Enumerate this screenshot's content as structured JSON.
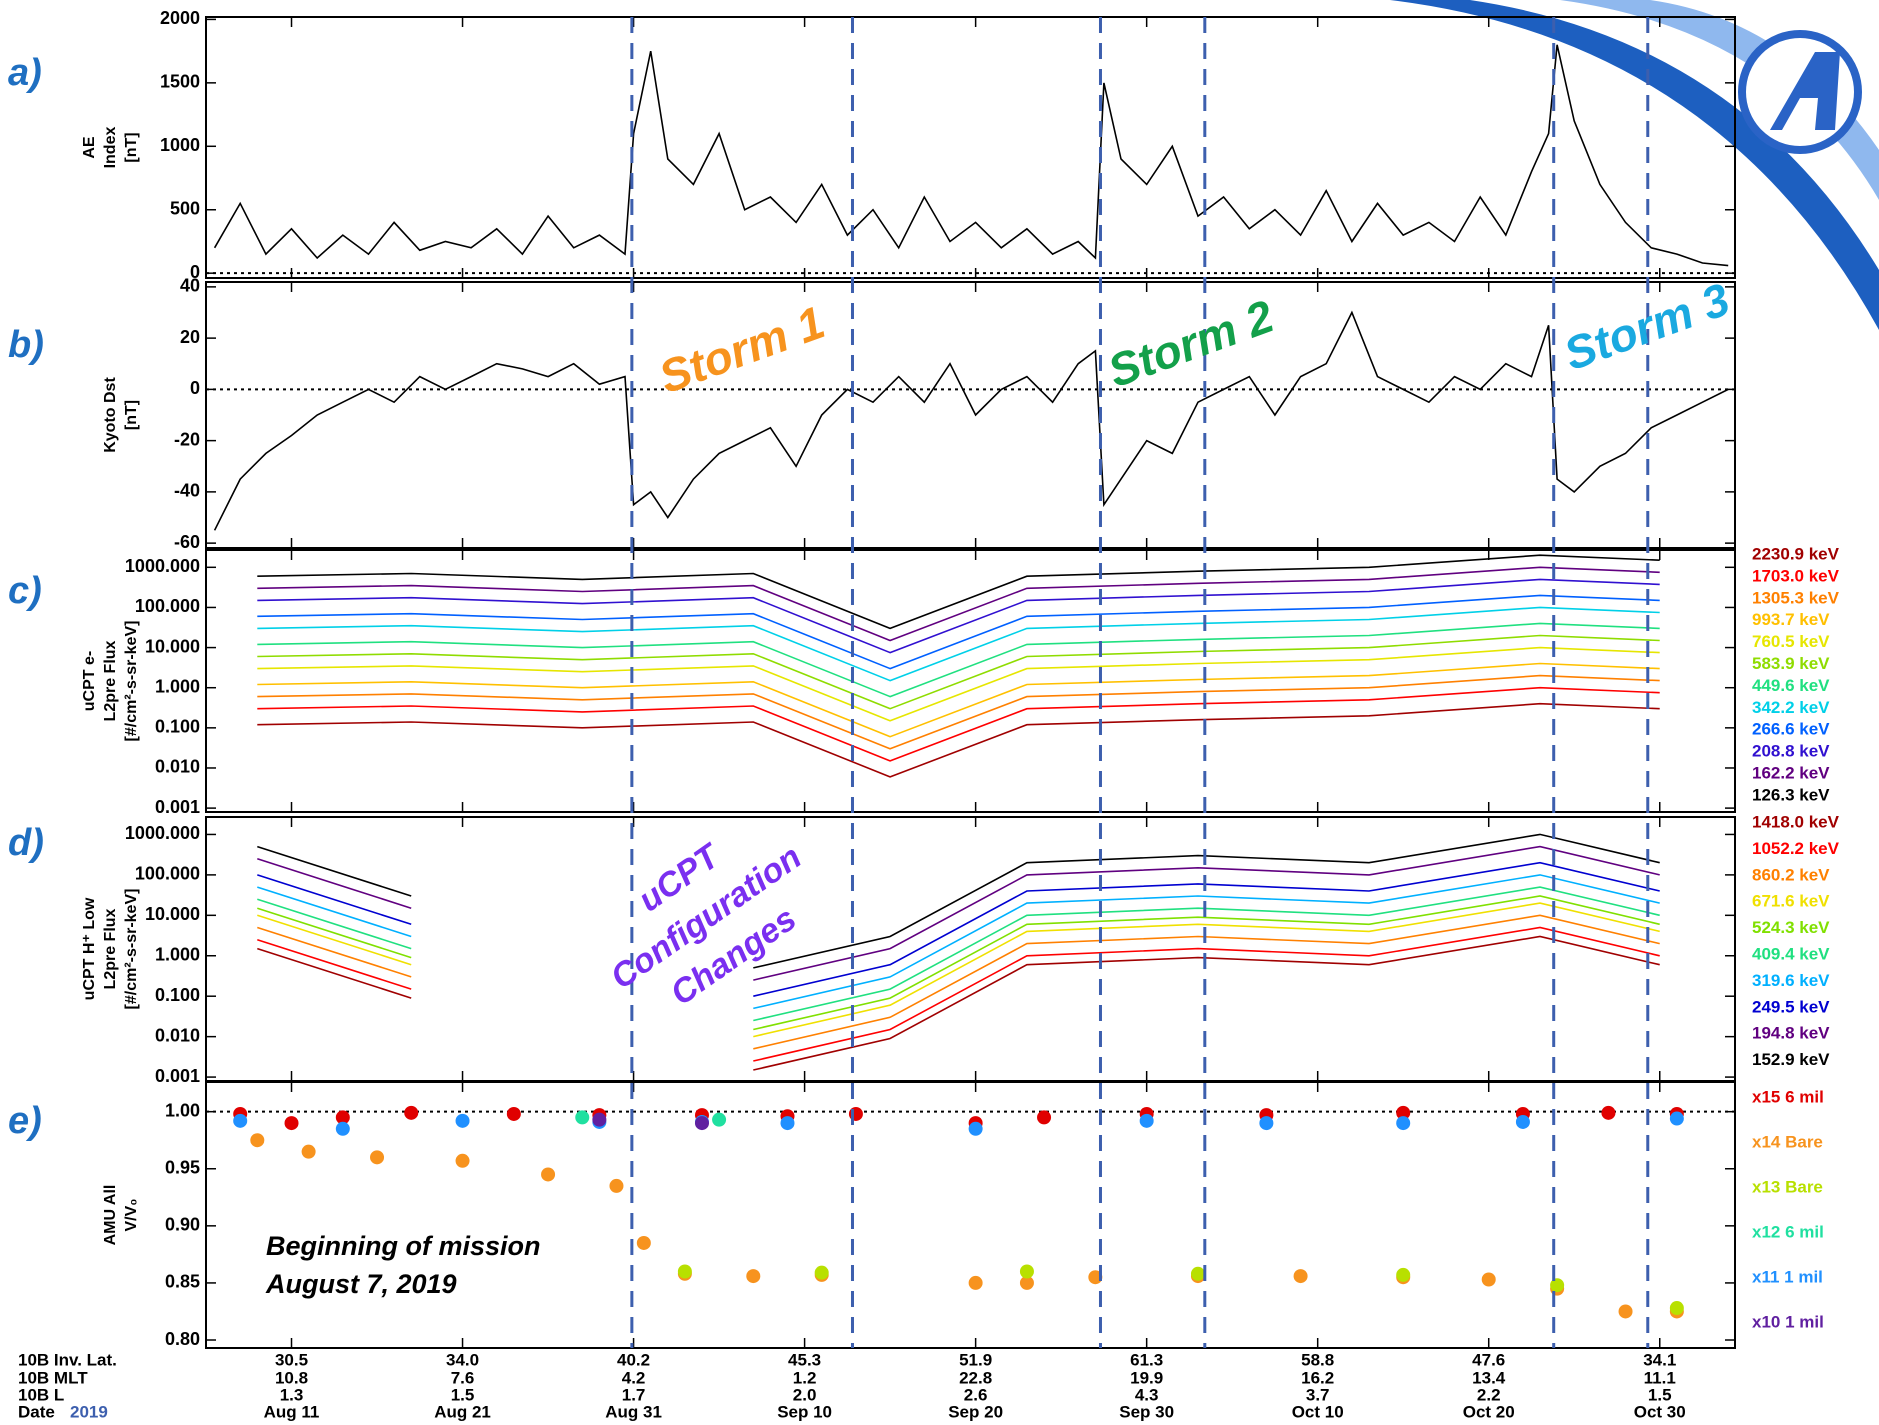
{
  "shared_x": {
    "xlim": [
      218,
      307.4
    ],
    "xticks": [
      {
        "value": 223,
        "label": "Aug 11"
      },
      {
        "value": 233,
        "label": "Aug 21"
      },
      {
        "value": 243,
        "label": "Aug 31"
      },
      {
        "value": 253,
        "label": "Sep 10"
      },
      {
        "value": 263,
        "label": "Sep 20"
      },
      {
        "value": 273,
        "label": "Sep 30"
      },
      {
        "value": 283,
        "label": "Oct 10"
      },
      {
        "value": 293,
        "label": "Oct 20"
      },
      {
        "value": 303,
        "label": "Oct 30"
      }
    ],
    "rows": [
      {
        "label": "10B Inv. Lat.",
        "values": [
          30.5,
          {
            "value": 34,
            "label": "34.0"
          },
          40.2,
          45.3,
          51.9,
          61.3,
          58.8,
          47.6,
          34.1
        ]
      },
      {
        "label": "10B MLT",
        "values": [
          10.8,
          7.6,
          4.2,
          1.2,
          22.8,
          19.9,
          16.2,
          13.4,
          11.1
        ]
      },
      {
        "label": "10B L",
        "values": [
          1.3,
          1.5,
          1.7,
          {
            "value": 2,
            "label": "2.0"
          },
          2.6,
          4.3,
          3.7,
          2.2,
          1.5
        ]
      }
    ],
    "date_label": "Date",
    "year": "2019",
    "storm_lines": [
      242.9,
      255.8,
      270.3,
      276.4,
      296.8,
      302.3
    ]
  },
  "annotations": [
    {
      "lines": [
        "Storm 1"
      ],
      "color": "#f7931e"
    },
    {
      "lines": [
        "Storm 2"
      ],
      "color": "#13a04a"
    },
    {
      "lines": [
        "Storm 3"
      ],
      "color": "#1aa9e0"
    },
    {
      "lines": [
        "uCPT",
        "Configuration",
        "Changes"
      ],
      "color": "#7a2ff0"
    },
    {
      "lines": [
        "Beginning of mission",
        "August 7, 2019"
      ],
      "color": "#000000"
    }
  ],
  "chart_data": [
    {
      "type": "line",
      "label": "a)",
      "ylabel": [
        "AE",
        "Index",
        "[nT]"
      ],
      "ylim": [
        -38,
        2019
      ],
      "yticks": [
        0,
        500,
        1000,
        1500,
        2000
      ],
      "hline": 0,
      "color": "#000000",
      "x": [
        218.5,
        220,
        221.5,
        223,
        224.5,
        226,
        227.5,
        229,
        230.5,
        232,
        233.5,
        235,
        236.5,
        238,
        239.5,
        241,
        242.5,
        243,
        244,
        245,
        246.5,
        248,
        249.5,
        251,
        252.5,
        254,
        255.5,
        257,
        258.5,
        260,
        261.5,
        263,
        264.5,
        266,
        267.5,
        269,
        270,
        270.5,
        271.5,
        273,
        274.5,
        276,
        277.5,
        279,
        280.5,
        282,
        283.5,
        285,
        286.5,
        288,
        289.5,
        291,
        292.5,
        294,
        295.5,
        296.5,
        297,
        298,
        299.5,
        301,
        302.5,
        304,
        305.5,
        307
      ],
      "values": [
        200,
        550,
        150,
        350,
        120,
        300,
        150,
        400,
        180,
        250,
        200,
        350,
        150,
        450,
        200,
        300,
        150,
        1100,
        1750,
        900,
        700,
        1100,
        500,
        600,
        400,
        700,
        300,
        500,
        200,
        600,
        250,
        400,
        200,
        350,
        150,
        250,
        120,
        1500,
        900,
        700,
        1000,
        450,
        600,
        350,
        500,
        300,
        650,
        250,
        550,
        300,
        400,
        250,
        600,
        300,
        800,
        1100,
        1800,
        1200,
        700,
        400,
        200,
        150,
        80,
        60
      ]
    },
    {
      "type": "line",
      "label": "b)",
      "ylabel": [
        "Kyoto Dst",
        "[nT]"
      ],
      "ylim": [
        -61.9,
        41.9
      ],
      "yticks": [
        -60,
        -40,
        -20,
        0,
        20,
        40
      ],
      "hline": 0,
      "color": "#000000",
      "x": [
        218.5,
        220,
        221.5,
        223,
        224.5,
        226,
        227.5,
        229,
        230.5,
        232,
        233.5,
        235,
        236.5,
        238,
        239.5,
        241,
        242.5,
        243,
        244,
        245,
        246.5,
        248,
        249.5,
        251,
        252.5,
        254,
        255.5,
        257,
        258.5,
        260,
        261.5,
        263,
        264.5,
        266,
        267.5,
        269,
        270,
        270.5,
        271.5,
        273,
        274.5,
        276,
        277.5,
        279,
        280.5,
        282,
        283.5,
        285,
        286.5,
        288,
        289.5,
        291,
        292.5,
        294,
        295.5,
        296.5,
        297,
        298,
        299.5,
        301,
        302.5,
        304,
        305.5,
        307
      ],
      "values": [
        -55,
        -35,
        -25,
        -18,
        -10,
        -5,
        0,
        -5,
        5,
        0,
        5,
        10,
        8,
        5,
        10,
        2,
        5,
        -45,
        -40,
        -50,
        -35,
        -25,
        -20,
        -15,
        -30,
        -10,
        0,
        -5,
        5,
        -5,
        10,
        -10,
        0,
        5,
        -5,
        10,
        15,
        -45,
        -35,
        -20,
        -25,
        -5,
        0,
        5,
        -10,
        5,
        10,
        30,
        5,
        0,
        -5,
        5,
        0,
        10,
        5,
        25,
        -35,
        -40,
        -30,
        -25,
        -15,
        -10,
        -5,
        0
      ]
    },
    {
      "type": "line",
      "label": "c)",
      "ylabel": [
        "uCPT e-",
        "L2pre Flux",
        "[#/cm²-s-sr-keV]"
      ],
      "log": true,
      "ylim": [
        0.0008,
        2700
      ],
      "yticks": [
        {
          "value": 1000,
          "label": "1000.000"
        },
        {
          "value": 100,
          "label": "100.000"
        },
        {
          "value": 10,
          "label": "10.000"
        },
        {
          "value": 1,
          "label": "1.000"
        },
        {
          "value": 0.1,
          "label": "0.100"
        },
        {
          "value": 0.01,
          "label": "0.010"
        },
        {
          "value": 0.001,
          "label": "0.001"
        }
      ],
      "x": [
        221,
        230,
        240,
        250,
        258,
        266,
        276,
        286,
        296,
        303
      ],
      "series": [
        {
          "name": "2230.9 keV",
          "color": "#a00000",
          "values": [
            0.12,
            0.14,
            0.1,
            0.14,
            0.006,
            0.12,
            0.16,
            0.2,
            0.4,
            0.3
          ]
        },
        {
          "name": "1703.0 keV",
          "color": "#ff0000",
          "values": [
            0.3,
            0.35,
            0.25,
            0.35,
            0.015,
            0.3,
            0.4,
            0.5,
            1,
            0.75
          ]
        },
        {
          "name": "1305.3 keV",
          "color": "#ff8000",
          "values": [
            0.6,
            0.7,
            0.5,
            0.7,
            0.03,
            0.6,
            0.8,
            1,
            2,
            1.5
          ]
        },
        {
          "name": "993.7 keV",
          "color": "#ffc000",
          "values": [
            1.2,
            1.4,
            1,
            1.4,
            0.06,
            1.2,
            1.6,
            2,
            4,
            3
          ]
        },
        {
          "name": "760.5 keV",
          "color": "#e6e600",
          "values": [
            3,
            3.5,
            2.5,
            3.5,
            0.15,
            3,
            4,
            5,
            10,
            7.5
          ]
        },
        {
          "name": "583.9 keV",
          "color": "#8fdc00",
          "values": [
            6,
            7,
            5,
            7,
            0.3,
            6,
            8,
            10,
            20,
            15
          ]
        },
        {
          "name": "449.6 keV",
          "color": "#20e080",
          "values": [
            12,
            14,
            10,
            14,
            0.6,
            12,
            16,
            20,
            40,
            30
          ]
        },
        {
          "name": "342.2 keV",
          "color": "#00d0e8",
          "values": [
            30,
            35,
            25,
            35,
            1.5,
            30,
            40,
            50,
            100,
            75
          ]
        },
        {
          "name": "266.6 keV",
          "color": "#0060ff",
          "values": [
            60,
            70,
            50,
            70,
            3,
            60,
            80,
            100,
            200,
            150
          ]
        },
        {
          "name": "208.8 keV",
          "color": "#3010d0",
          "values": [
            150,
            175,
            125,
            175,
            7.5,
            150,
            200,
            250,
            500,
            375
          ]
        },
        {
          "name": "162.2 keV",
          "color": "#600080",
          "values": [
            300,
            350,
            250,
            350,
            15,
            300,
            400,
            500,
            1000,
            750
          ]
        },
        {
          "name": "126.3 keV",
          "color": "#000000",
          "values": [
            600,
            700,
            500,
            700,
            30,
            600,
            800,
            1000,
            2000,
            1500
          ]
        }
      ]
    },
    {
      "type": "line",
      "label": "d)",
      "ylabel": [
        "uCPT H⁺ Low",
        "L2pre Flux",
        "[#/cm²-s-sr-keV]"
      ],
      "log": true,
      "ylim": [
        0.0008,
        2700
      ],
      "yticks": [
        {
          "value": 1000,
          "label": "1000.000"
        },
        {
          "value": 100,
          "label": "100.000"
        },
        {
          "value": 10,
          "label": "10.000"
        },
        {
          "value": 1,
          "label": "1.000"
        },
        {
          "value": 0.1,
          "label": "0.100"
        },
        {
          "value": 0.01,
          "label": "0.010"
        },
        {
          "value": 0.001,
          "label": "0.001"
        }
      ],
      "x": [
        221,
        230,
        240,
        250,
        258,
        266,
        276,
        286,
        296,
        303
      ],
      "series": [
        {
          "name": "1418.0 keV",
          "color": "#a00000",
          "values": [
            1.5,
            0.09,
            null,
            0.0015,
            0.009,
            0.6,
            0.9,
            0.6,
            3,
            0.6
          ]
        },
        {
          "name": "1052.2 keV",
          "color": "#ff0000",
          "values": [
            2.5,
            0.15,
            null,
            0.0025,
            0.015,
            1,
            1.5,
            1,
            5,
            1
          ]
        },
        {
          "name": "860.2 keV",
          "color": "#ff8000",
          "values": [
            5,
            0.3,
            null,
            0.005,
            0.03,
            2,
            3,
            2,
            10,
            2
          ]
        },
        {
          "name": "671.6 keV",
          "color": "#f0e000",
          "values": [
            10,
            0.6,
            null,
            0.01,
            0.06,
            4,
            6,
            4,
            20,
            4
          ]
        },
        {
          "name": "524.3 keV",
          "color": "#80e000",
          "values": [
            15,
            0.9,
            null,
            0.015,
            0.09,
            6,
            9,
            6,
            30,
            6
          ]
        },
        {
          "name": "409.4 keV",
          "color": "#20e080",
          "values": [
            25,
            1.5,
            null,
            0.025,
            0.15,
            10,
            15,
            10,
            50,
            10
          ]
        },
        {
          "name": "319.6 keV",
          "color": "#00b0ff",
          "values": [
            50,
            3,
            null,
            0.05,
            0.3,
            20,
            30,
            20,
            100,
            20
          ]
        },
        {
          "name": "249.5 keV",
          "color": "#0000d0",
          "values": [
            100,
            6,
            null,
            0.1,
            0.6,
            40,
            60,
            40,
            200,
            40
          ]
        },
        {
          "name": "194.8 keV",
          "color": "#600080",
          "values": [
            250,
            15,
            null,
            0.25,
            1.5,
            100,
            150,
            100,
            500,
            100
          ]
        },
        {
          "name": "152.9 keV",
          "color": "#000000",
          "values": [
            500,
            30,
            null,
            0.5,
            3,
            200,
            300,
            200,
            1000,
            200
          ]
        }
      ]
    },
    {
      "type": "scatter",
      "label": "e)",
      "ylabel": [
        "AMU All",
        "V/V₀"
      ],
      "ylim": [
        0.793,
        1.026
      ],
      "yticks": [
        {
          "value": 0.8,
          "label": "0.80"
        },
        0.85,
        {
          "value": 0.9,
          "label": "0.90"
        },
        0.95,
        {
          "value": 1,
          "label": "1.00"
        }
      ],
      "hline": 1,
      "series": [
        {
          "name": "x15 6 mil",
          "color": "#e00000",
          "x": [
            220,
            223,
            226,
            230,
            236,
            241,
            247,
            252,
            256,
            263,
            267,
            273,
            280,
            288,
            295,
            300,
            304
          ],
          "values": [
            0.998,
            0.99,
            0.995,
            0.999,
            0.998,
            0.997,
            0.997,
            0.996,
            0.998,
            0.99,
            0.995,
            0.998,
            0.997,
            0.999,
            0.998,
            0.999,
            0.998
          ]
        },
        {
          "name": "x14 Bare",
          "color": "#f7931e",
          "x": [
            221,
            224,
            228,
            233,
            238,
            242,
            243.6,
            246,
            250,
            254,
            263,
            266,
            270,
            276,
            282,
            288,
            293,
            297,
            301,
            304
          ],
          "values": [
            0.975,
            0.965,
            0.96,
            0.957,
            0.945,
            0.935,
            0.885,
            0.858,
            0.856,
            0.857,
            0.85,
            0.85,
            0.855,
            0.856,
            0.856,
            0.855,
            0.853,
            0.845,
            0.825,
            0.825
          ]
        },
        {
          "name": "x13 Bare",
          "color": "#b8e000",
          "x": [
            246,
            254,
            266,
            276,
            288,
            297,
            304
          ],
          "values": [
            0.86,
            0.859,
            0.86,
            0.858,
            0.857,
            0.848,
            0.828
          ]
        },
        {
          "name": "x12 6 mil",
          "color": "#20e0a0",
          "x": [
            240,
            248
          ],
          "values": [
            0.995,
            0.993
          ]
        },
        {
          "name": "x11 1 mil",
          "color": "#2090ff",
          "x": [
            220,
            226,
            233,
            241,
            247,
            252,
            263,
            273,
            280,
            288,
            295,
            304
          ],
          "values": [
            0.992,
            0.985,
            0.992,
            0.991,
            0.991,
            0.99,
            0.985,
            0.992,
            0.99,
            0.99,
            0.991,
            0.994
          ]
        },
        {
          "name": "x10 1 mil",
          "color": "#6020a0",
          "x": [
            241,
            247
          ],
          "values": [
            0.993,
            0.99
          ]
        }
      ]
    }
  ]
}
